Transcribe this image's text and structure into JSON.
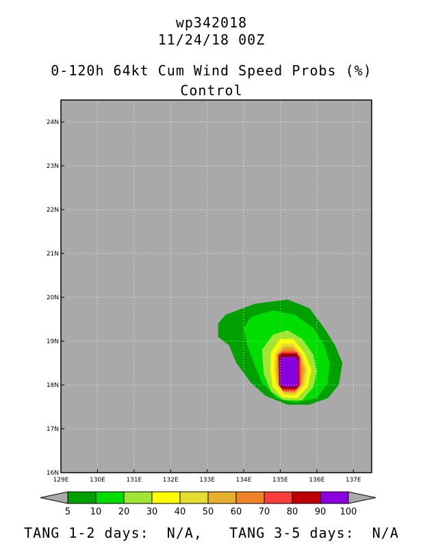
{
  "header": {
    "storm_id": "wp342018",
    "datetime": "11/24/18 00Z",
    "product_title": "0-120h 64kt Cum Wind Speed Probs (%)",
    "subtitle": "Control"
  },
  "map": {
    "background_color": "#a9a9a9",
    "lon_range": [
      129,
      137.5
    ],
    "lat_range": [
      16,
      24.5
    ],
    "lon_ticks": [
      "129E",
      "130E",
      "131E",
      "132E",
      "133E",
      "134E",
      "135E",
      "136E",
      "137E"
    ],
    "lat_ticks": [
      "16N",
      "17N",
      "18N",
      "19N",
      "20N",
      "21N",
      "22N",
      "23N",
      "24N"
    ],
    "grid_lines": "dotted",
    "probability_field": {
      "center": [
        135.25,
        18.3
      ],
      "contours": [
        {
          "level": 5,
          "color": "#00a000",
          "polygon": [
            [
              133.3,
              19.4
            ],
            [
              133.5,
              19.6
            ],
            [
              134.3,
              19.85
            ],
            [
              135.2,
              19.95
            ],
            [
              135.8,
              19.75
            ],
            [
              136.2,
              19.3
            ],
            [
              136.5,
              18.9
            ],
            [
              136.7,
              18.5
            ],
            [
              136.6,
              18.0
            ],
            [
              136.3,
              17.7
            ],
            [
              135.8,
              17.55
            ],
            [
              135.2,
              17.55
            ],
            [
              134.6,
              17.75
            ],
            [
              134.2,
              18.05
            ],
            [
              133.8,
              18.5
            ],
            [
              133.6,
              18.9
            ],
            [
              133.3,
              19.1
            ]
          ]
        },
        {
          "level": 10,
          "color": "#00dd00",
          "polygon": [
            [
              134.0,
              19.3
            ],
            [
              134.2,
              19.55
            ],
            [
              134.8,
              19.7
            ],
            [
              135.4,
              19.6
            ],
            [
              135.9,
              19.3
            ],
            [
              136.2,
              18.9
            ],
            [
              136.35,
              18.5
            ],
            [
              136.3,
              18.05
            ],
            [
              136.0,
              17.7
            ],
            [
              135.4,
              17.6
            ],
            [
              134.9,
              17.7
            ],
            [
              134.5,
              18.05
            ],
            [
              134.25,
              18.55
            ],
            [
              134.1,
              18.9
            ]
          ]
        },
        {
          "level": 20,
          "color": "#a0e632",
          "polygon": [
            [
              134.5,
              18.8
            ],
            [
              134.8,
              19.15
            ],
            [
              135.2,
              19.25
            ],
            [
              135.6,
              19.05
            ],
            [
              135.9,
              18.7
            ],
            [
              136.0,
              18.3
            ],
            [
              135.9,
              17.95
            ],
            [
              135.6,
              17.65
            ],
            [
              135.1,
              17.65
            ],
            [
              134.75,
              17.85
            ],
            [
              134.55,
              18.25
            ]
          ]
        },
        {
          "level": 30,
          "color": "#ffff00",
          "polygon": [
            [
              134.75,
              18.75
            ],
            [
              135.0,
              19.05
            ],
            [
              135.35,
              19.05
            ],
            [
              135.65,
              18.75
            ],
            [
              135.85,
              18.35
            ],
            [
              135.75,
              17.95
            ],
            [
              135.45,
              17.7
            ],
            [
              135.05,
              17.72
            ],
            [
              134.8,
              17.95
            ],
            [
              134.72,
              18.35
            ]
          ]
        },
        {
          "level": 40,
          "color": "#e6dc32",
          "polygon": [
            [
              134.85,
              18.7
            ],
            [
              135.05,
              18.95
            ],
            [
              135.35,
              18.95
            ],
            [
              135.6,
              18.7
            ],
            [
              135.75,
              18.35
            ],
            [
              135.68,
              18.0
            ],
            [
              135.42,
              17.76
            ],
            [
              135.08,
              17.78
            ],
            [
              134.88,
              18.0
            ],
            [
              134.82,
              18.35
            ]
          ]
        },
        {
          "level": 50,
          "color": "#e6af2d",
          "polygon": [
            [
              134.9,
              18.7
            ],
            [
              135.1,
              18.88
            ],
            [
              135.35,
              18.88
            ],
            [
              135.56,
              18.68
            ],
            [
              135.68,
              18.35
            ],
            [
              135.62,
              18.02
            ],
            [
              135.4,
              17.8
            ],
            [
              135.1,
              17.82
            ],
            [
              134.93,
              18.02
            ],
            [
              134.88,
              18.35
            ]
          ]
        },
        {
          "level": 60,
          "color": "#f08228",
          "polygon": [
            [
              134.92,
              18.68
            ],
            [
              135.12,
              18.82
            ],
            [
              135.35,
              18.82
            ],
            [
              135.52,
              18.66
            ],
            [
              135.62,
              18.35
            ],
            [
              135.56,
              18.04
            ],
            [
              135.38,
              17.84
            ],
            [
              135.12,
              17.85
            ],
            [
              134.96,
              18.04
            ],
            [
              134.92,
              18.35
            ]
          ]
        },
        {
          "level": 70,
          "color": "#fa3c3c",
          "polygon": [
            [
              134.94,
              18.7
            ],
            [
              135.05,
              18.76
            ],
            [
              135.45,
              18.76
            ],
            [
              135.55,
              18.62
            ],
            [
              135.56,
              18.0
            ],
            [
              135.42,
              17.86
            ],
            [
              135.08,
              17.86
            ],
            [
              134.96,
              18.0
            ]
          ]
        },
        {
          "level": 80,
          "color": "#c00000",
          "polygon": [
            [
              134.96,
              18.68
            ],
            [
              135.05,
              18.72
            ],
            [
              135.45,
              18.72
            ],
            [
              135.52,
              18.62
            ],
            [
              135.52,
              18.0
            ],
            [
              135.42,
              17.9
            ],
            [
              135.07,
              17.9
            ],
            [
              134.97,
              18.0
            ]
          ]
        },
        {
          "level": 90,
          "color": "#8c0000",
          "polygon": [
            [
              134.97,
              18.66
            ],
            [
              135.04,
              18.7
            ],
            [
              135.44,
              18.7
            ],
            [
              135.5,
              18.62
            ],
            [
              135.5,
              17.98
            ],
            [
              135.44,
              17.92
            ],
            [
              135.05,
              17.92
            ],
            [
              134.98,
              17.98
            ]
          ]
        },
        {
          "level": 100,
          "color": "#8a00e0",
          "polygon": [
            [
              135.0,
              18.6
            ],
            [
              135.07,
              18.64
            ],
            [
              135.44,
              18.64
            ],
            [
              135.48,
              18.56
            ],
            [
              135.48,
              18.02
            ],
            [
              135.42,
              17.96
            ],
            [
              135.06,
              17.96
            ],
            [
              135.0,
              18.02
            ]
          ]
        }
      ]
    }
  },
  "colorbar": {
    "colors": [
      "#00a000",
      "#00dd00",
      "#a0e632",
      "#ffff00",
      "#e6dc32",
      "#e6af2d",
      "#f08228",
      "#fa3c3c",
      "#c00000",
      "#8a00e0"
    ],
    "end_color": "#a9a9a9",
    "labels": [
      "5",
      "10",
      "20",
      "30",
      "40",
      "50",
      "60",
      "70",
      "80",
      "90",
      "100"
    ]
  },
  "footer": {
    "tang_1_2_label": "TANG 1-2 days:",
    "tang_1_2_value": "N/A,",
    "tang_3_5_label": "TANG 3-5 days:",
    "tang_3_5_value": "N/A"
  }
}
